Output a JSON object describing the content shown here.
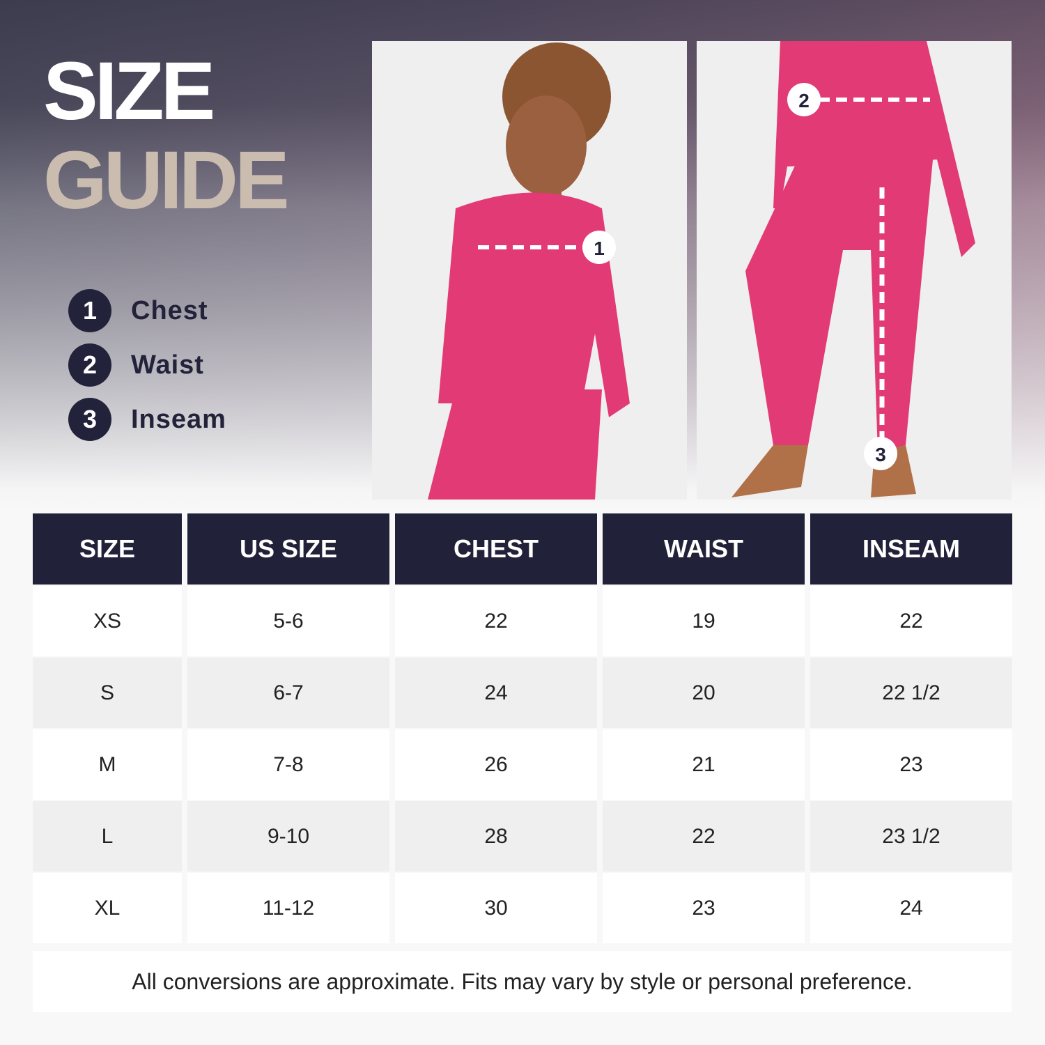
{
  "title": {
    "line1": "SIZE",
    "line2": "GUIDE"
  },
  "legend": [
    {
      "num": "1",
      "label": "Chest"
    },
    {
      "num": "2",
      "label": "Waist"
    },
    {
      "num": "3",
      "label": "Inseam"
    }
  ],
  "photo_markers": {
    "chest": "1",
    "waist": "2",
    "inseam": "3"
  },
  "colors": {
    "navy": "#21213a",
    "beige": "#cbbcb0",
    "pink": "#e23a74"
  },
  "table": {
    "headers": [
      "SIZE",
      "US SIZE",
      "CHEST",
      "WAIST",
      "INSEAM"
    ],
    "rows": [
      [
        "XS",
        "5-6",
        "22",
        "19",
        "22"
      ],
      [
        "S",
        "6-7",
        "24",
        "20",
        "22 1/2"
      ],
      [
        "M",
        "7-8",
        "26",
        "21",
        "23"
      ],
      [
        "L",
        "9-10",
        "28",
        "22",
        "23 1/2"
      ],
      [
        "XL",
        "11-12",
        "30",
        "23",
        "24"
      ]
    ]
  },
  "note": "All conversions are approximate. Fits may vary by style or personal preference."
}
